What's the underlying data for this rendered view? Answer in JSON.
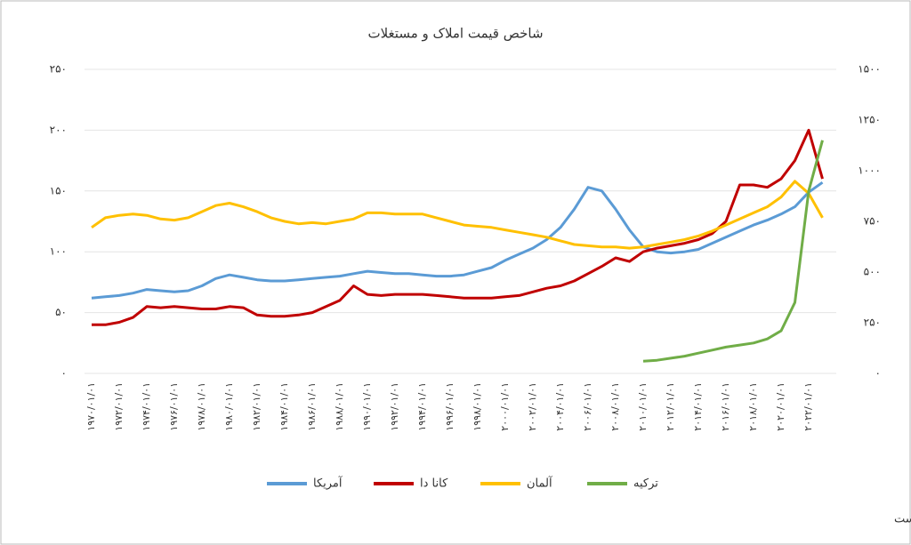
{
  "chart_data": {
    "type": "line",
    "title": "شاخص قیمت املاک و مستغلات",
    "categories": [
      "۱۹۷۰/۰۱/۰۱",
      null,
      "۱۹۷۲/۰۱/۰۱",
      null,
      "۱۹۷۴/۰۱/۰۱",
      null,
      "۱۹۷۶/۰۱/۰۱",
      null,
      "۱۹۷۸/۰۱/۰۱",
      null,
      "۱۹۸۰/۰۱/۰۱",
      null,
      "۱۹۸۲/۰۱/۰۱",
      null,
      "۱۹۸۴/۰۱/۰۱",
      null,
      "۱۹۸۶/۰۱/۰۱",
      null,
      "۱۹۸۸/۰۱/۰۱",
      null,
      "۱۹۹۰/۰۱/۰۱",
      null,
      "۱۹۹۲/۰۱/۰۱",
      null,
      "۱۹۹۴/۰۱/۰۱",
      null,
      "۱۹۹۶/۰۱/۰۱",
      null,
      "۱۹۹۸/۰۱/۰۱",
      null,
      "۲۰۰۰/۰۱/۰۱",
      null,
      "۲۰۰۲/۰۱/۰۱",
      null,
      "۲۰۰۴/۰۱/۰۱",
      null,
      "۲۰۰۶/۰۱/۰۱",
      null,
      "۲۰۰۸/۰۱/۰۱",
      null,
      "۲۰۱۰/۰۱/۰۱",
      null,
      "۲۰۱۲/۰۱/۰۱",
      null,
      "۲۰۱۴/۰۱/۰۱",
      null,
      "۲۰۱۶/۰۱/۰۱",
      null,
      "۲۰۱۸/۰۱/۰۱",
      null,
      "۲۰۲۰/۰۱/۰۱",
      null,
      "۲۰۲۲/۰۱/۰۱",
      null
    ],
    "series": [
      {
        "name": "آمریکا",
        "color": "#5b9bd5",
        "values": [
          62,
          63,
          64,
          66,
          69,
          68,
          67,
          68,
          72,
          78,
          81,
          79,
          77,
          76,
          76,
          77,
          78,
          79,
          80,
          82,
          84,
          83,
          82,
          82,
          81,
          80,
          80,
          81,
          84,
          87,
          93,
          98,
          103,
          110,
          120,
          135,
          153,
          150,
          135,
          118,
          104,
          100,
          99,
          100,
          102,
          107,
          112,
          117,
          122,
          126,
          131,
          137,
          149,
          157
        ]
      },
      {
        "name": "کانا دا",
        "color": "#c00000",
        "values": [
          40,
          40,
          42,
          46,
          55,
          54,
          55,
          54,
          53,
          53,
          55,
          54,
          48,
          47,
          47,
          48,
          50,
          55,
          60,
          72,
          65,
          64,
          65,
          65,
          65,
          64,
          63,
          62,
          62,
          62,
          63,
          64,
          67,
          70,
          72,
          76,
          82,
          88,
          95,
          92,
          100,
          103,
          105,
          107,
          110,
          115,
          125,
          155,
          155,
          153,
          160,
          175,
          200,
          160
        ]
      },
      {
        "name": "آلمان",
        "color": "#ffc000",
        "values": [
          120,
          128,
          130,
          131,
          130,
          127,
          126,
          128,
          133,
          138,
          140,
          137,
          133,
          128,
          125,
          123,
          124,
          123,
          125,
          127,
          132,
          132,
          131,
          131,
          131,
          128,
          125,
          122,
          121,
          120,
          118,
          116,
          114,
          112,
          109,
          106,
          105,
          104,
          104,
          103,
          104,
          106,
          108,
          110,
          113,
          117,
          122,
          127,
          132,
          137,
          145,
          158,
          148,
          128
        ]
      },
      {
        "name": "ترکیه",
        "color": "#70ad47",
        "axis": "y2",
        "values": [
          null,
          null,
          null,
          null,
          null,
          null,
          null,
          null,
          null,
          null,
          null,
          null,
          null,
          null,
          null,
          null,
          null,
          null,
          null,
          null,
          null,
          null,
          null,
          null,
          null,
          null,
          null,
          null,
          null,
          null,
          null,
          null,
          null,
          null,
          null,
          null,
          null,
          null,
          null,
          null,
          60,
          65,
          75,
          85,
          100,
          115,
          130,
          140,
          150,
          170,
          210,
          350,
          900,
          1150
        ]
      }
    ],
    "ylim": [
      0,
      250
    ],
    "yticks": [
      {
        "value": 0,
        "label": "۰"
      },
      {
        "value": 50,
        "label": "۵۰"
      },
      {
        "value": 100,
        "label": "۱۰۰"
      },
      {
        "value": 150,
        "label": "۱۵۰"
      },
      {
        "value": 200,
        "label": "۲۰۰"
      },
      {
        "value": 250,
        "label": "۲۵۰"
      }
    ],
    "y2lim": [
      0,
      1500
    ],
    "y2ticks": [
      {
        "value": 0,
        "label": "۰"
      },
      {
        "value": 250,
        "label": "۲۵۰"
      },
      {
        "value": 500,
        "label": "۵۰۰"
      },
      {
        "value": 750,
        "label": "۷۵۰"
      },
      {
        "value": 1000,
        "label": "۱۰۰۰"
      },
      {
        "value": 1250,
        "label": "۱۲۵۰"
      },
      {
        "value": 1500,
        "label": "۱۵۰۰"
      }
    ],
    "grid": true,
    "caption": "شاخص قیمت املاک و مستغلات: محور عمودی سمت راست مربوط به کشور ترکیه و محور سمت چپ مربوط به کشورهای آلمان، کانادا و آمریکاست"
  }
}
